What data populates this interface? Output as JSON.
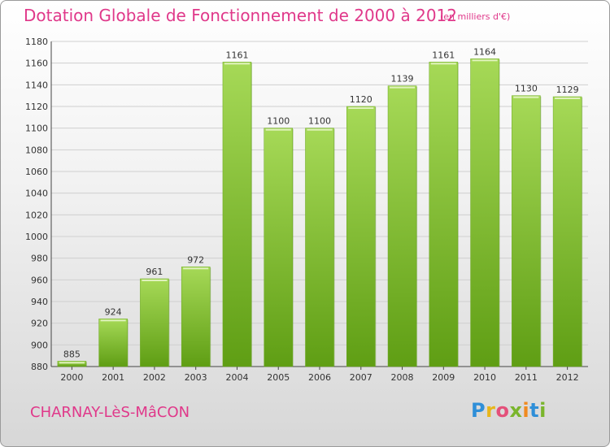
{
  "header": {
    "title": "Dotation Globale de Fonctionnement de 2000 à 2012",
    "unit": "(en milliers d'€)"
  },
  "footer": {
    "city": "CHARNAY-LèS-MâCON",
    "logo": [
      "P",
      "r",
      "o",
      "x",
      "i",
      "t",
      "i"
    ],
    "logo_colors": [
      "#2f8fd8",
      "#e8b61a",
      "#e4507a",
      "#7ab52c",
      "#f08a1f",
      "#2f8fd8",
      "#7ab52c"
    ]
  },
  "colors": {
    "bar_light": "#a6d957",
    "bar_dark": "#5f9e14",
    "title": "#e0388a"
  },
  "chart_data": {
    "type": "bar",
    "title": "Dotation Globale de Fonctionnement de 2000 à 2012",
    "subtitle": "(en milliers d'€)",
    "xlabel": "",
    "ylabel": "",
    "categories": [
      "2000",
      "2001",
      "2002",
      "2003",
      "2004",
      "2005",
      "2006",
      "2007",
      "2008",
      "2009",
      "2010",
      "2011",
      "2012"
    ],
    "values": [
      885,
      924,
      961,
      972,
      1161,
      1100,
      1100,
      1120,
      1139,
      1161,
      1164,
      1130,
      1129
    ],
    "ylim": [
      880,
      1180
    ],
    "yticks": [
      880,
      900,
      920,
      940,
      960,
      980,
      1000,
      1020,
      1040,
      1060,
      1080,
      1100,
      1120,
      1140,
      1160,
      1180
    ],
    "grid": true,
    "legend": "none"
  }
}
